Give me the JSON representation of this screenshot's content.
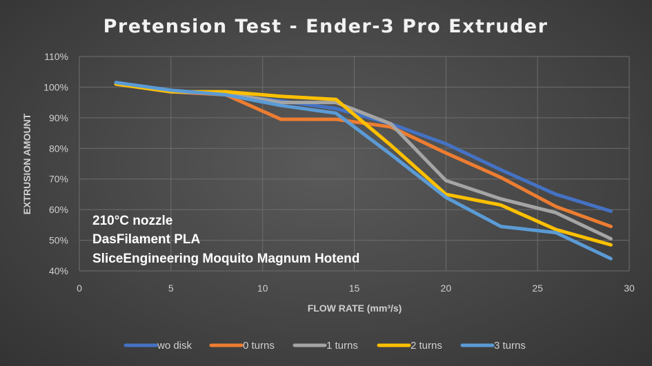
{
  "chart_data": {
    "type": "line",
    "title": "Pretension Test - Ender-3 Pro Extruder",
    "xlabel": "FLOW RATE (mm³/s)",
    "ylabel": "EXTRUSION AMOUNT",
    "xlim": [
      0,
      30
    ],
    "ylim": [
      40,
      110
    ],
    "x_ticks": [
      0,
      5,
      10,
      15,
      20,
      25,
      30
    ],
    "y_ticks": [
      40,
      50,
      60,
      70,
      80,
      90,
      100,
      110
    ],
    "y_tick_labels": [
      "40%",
      "50%",
      "60%",
      "70%",
      "80%",
      "90%",
      "100%",
      "110%"
    ],
    "grid": true,
    "legend_position": "bottom",
    "x": [
      2,
      5,
      8,
      11,
      14,
      17,
      20,
      23,
      26,
      29
    ],
    "series": [
      {
        "name": "wo disk",
        "color": "#4472c4",
        "values": [
          101.5,
          98.5,
          97.5,
          95.5,
          93,
          88,
          81.5,
          73,
          65,
          59.5
        ]
      },
      {
        "name": "0 turns",
        "color": "#ed7d31",
        "values": [
          101,
          98.5,
          97.5,
          89.5,
          89.5,
          87,
          78.5,
          70.5,
          61,
          54.5
        ]
      },
      {
        "name": "1 turns",
        "color": "#a5a5a5",
        "values": [
          101,
          98.5,
          98,
          95,
          95,
          88,
          69.5,
          63.5,
          59,
          50.5
        ]
      },
      {
        "name": "2 turns",
        "color": "#ffc000",
        "values": [
          101,
          98.5,
          98.5,
          97,
          96,
          81,
          65,
          61.5,
          53.5,
          48.5
        ]
      },
      {
        "name": "3 turns",
        "color": "#5b9bd5",
        "values": [
          101.5,
          99,
          97.5,
          94,
          91.5,
          78,
          64,
          54.5,
          52.5,
          44
        ]
      }
    ],
    "annotations": [
      "210°C nozzle",
      "DasFilament PLA",
      "SliceEngineering Moquito Magnum Hotend"
    ]
  }
}
